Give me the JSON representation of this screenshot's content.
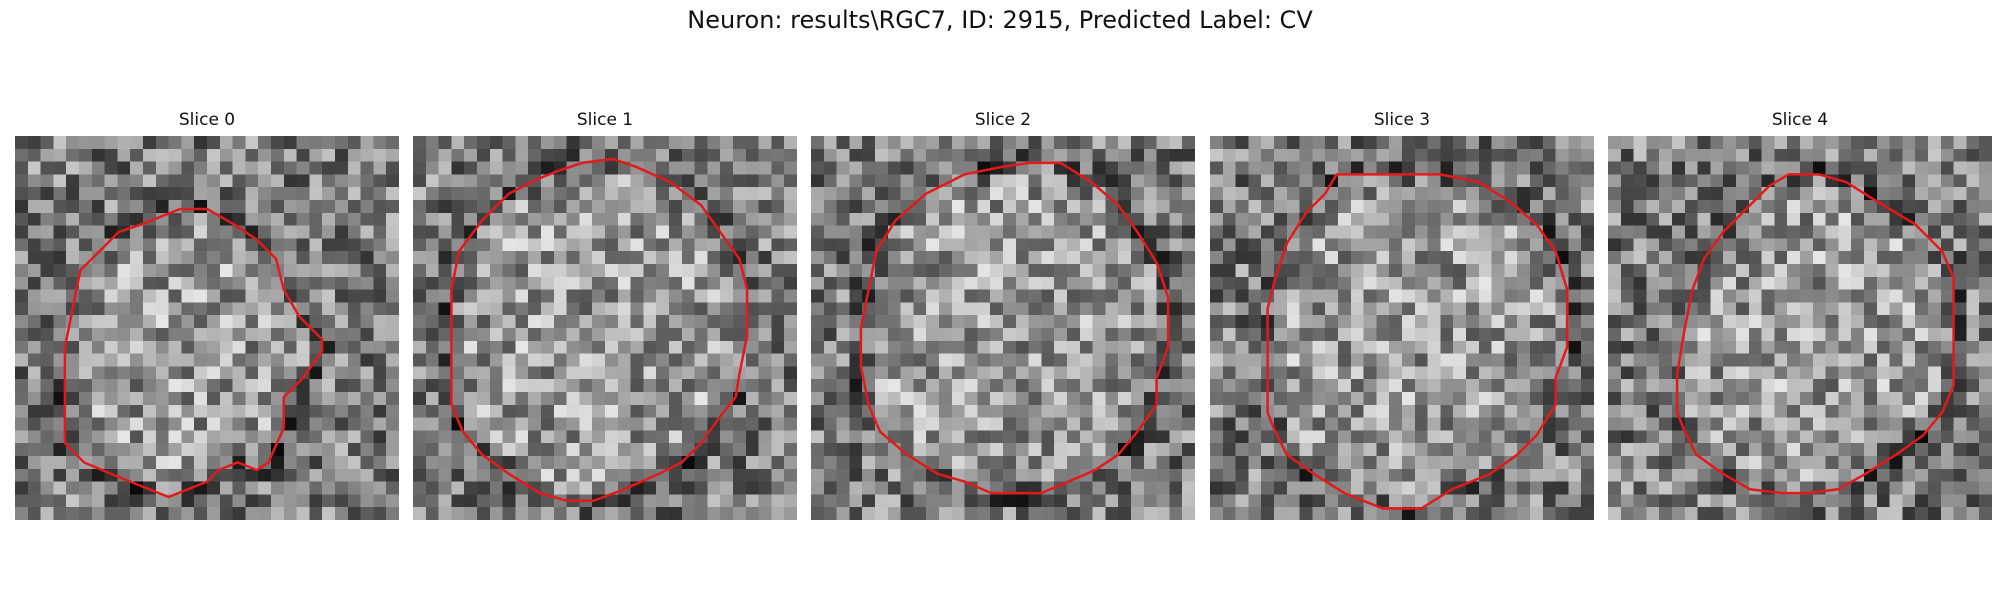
{
  "figure": {
    "title": "Neuron: results\\RGC7, ID: 2915, Predicted Label: CV"
  },
  "panels": [
    {
      "title": "Slice 0"
    },
    {
      "title": "Slice 1"
    },
    {
      "title": "Slice 2"
    },
    {
      "title": "Slice 3"
    },
    {
      "title": "Slice 4"
    }
  ],
  "colors": {
    "contour": "#e31a1c",
    "background": "#ffffff"
  }
}
